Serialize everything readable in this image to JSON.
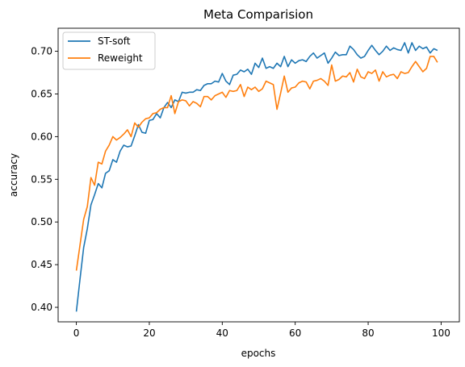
{
  "chart_data": {
    "type": "line",
    "title": "Meta Comparision",
    "xlabel": "epochs",
    "ylabel": "accuracy",
    "xlim": [
      -5,
      105
    ],
    "ylim": [
      0.383,
      0.727
    ],
    "xticks": [
      0,
      20,
      40,
      60,
      80,
      100
    ],
    "xtick_labels": [
      "0",
      "20",
      "40",
      "60",
      "80",
      "100"
    ],
    "yticks": [
      0.4,
      0.45,
      0.5,
      0.55,
      0.6,
      0.65,
      0.7
    ],
    "ytick_labels": [
      "0.40",
      "0.45",
      "0.50",
      "0.55",
      "0.60",
      "0.65",
      "0.70"
    ],
    "grid": false,
    "legend_position": "top-left",
    "series": [
      {
        "name": "ST-soft",
        "color": "#1f77b4",
        "x": [
          0,
          1,
          2,
          3,
          4,
          5,
          6,
          7,
          8,
          9,
          10,
          11,
          12,
          13,
          14,
          15,
          16,
          17,
          18,
          19,
          20,
          21,
          22,
          23,
          24,
          25,
          26,
          27,
          28,
          29,
          30,
          31,
          32,
          33,
          34,
          35,
          36,
          37,
          38,
          39,
          40,
          41,
          42,
          43,
          44,
          45,
          46,
          47,
          48,
          49,
          50,
          51,
          52,
          53,
          54,
          55,
          56,
          57,
          58,
          59,
          60,
          61,
          62,
          63,
          64,
          65,
          66,
          67,
          68,
          69,
          70,
          71,
          72,
          73,
          74,
          75,
          76,
          77,
          78,
          79,
          80,
          81,
          82,
          83,
          84,
          85,
          86,
          87,
          88,
          89,
          90,
          91,
          92,
          93,
          94,
          95,
          96,
          97,
          98,
          99
        ],
        "values": [
          0.395,
          0.433,
          0.47,
          0.492,
          0.52,
          0.532,
          0.545,
          0.54,
          0.557,
          0.56,
          0.573,
          0.57,
          0.583,
          0.59,
          0.588,
          0.589,
          0.601,
          0.614,
          0.605,
          0.604,
          0.619,
          0.62,
          0.627,
          0.622,
          0.634,
          0.64,
          0.634,
          0.643,
          0.641,
          0.652,
          0.651,
          0.652,
          0.652,
          0.655,
          0.654,
          0.66,
          0.662,
          0.662,
          0.665,
          0.664,
          0.674,
          0.665,
          0.661,
          0.672,
          0.673,
          0.678,
          0.676,
          0.679,
          0.673,
          0.686,
          0.681,
          0.692,
          0.68,
          0.682,
          0.68,
          0.686,
          0.682,
          0.694,
          0.682,
          0.69,
          0.686,
          0.689,
          0.69,
          0.688,
          0.694,
          0.698,
          0.692,
          0.695,
          0.698,
          0.686,
          0.692,
          0.699,
          0.695,
          0.696,
          0.696,
          0.706,
          0.702,
          0.696,
          0.692,
          0.694,
          0.701,
          0.707,
          0.701,
          0.696,
          0.7,
          0.706,
          0.701,
          0.704,
          0.702,
          0.701,
          0.71,
          0.698,
          0.71,
          0.701,
          0.706,
          0.703,
          0.705,
          0.698,
          0.703,
          0.701
        ]
      },
      {
        "name": "Reweight",
        "color": "#ff7f0e",
        "x": [
          0,
          1,
          2,
          3,
          4,
          5,
          6,
          7,
          8,
          9,
          10,
          11,
          12,
          13,
          14,
          15,
          16,
          17,
          18,
          19,
          20,
          21,
          22,
          23,
          24,
          25,
          26,
          27,
          28,
          29,
          30,
          31,
          32,
          33,
          34,
          35,
          36,
          37,
          38,
          39,
          40,
          41,
          42,
          43,
          44,
          45,
          46,
          47,
          48,
          49,
          50,
          51,
          52,
          53,
          54,
          55,
          56,
          57,
          58,
          59,
          60,
          61,
          62,
          63,
          64,
          65,
          66,
          67,
          68,
          69,
          70,
          71,
          72,
          73,
          74,
          75,
          76,
          77,
          78,
          79,
          80,
          81,
          82,
          83,
          84,
          85,
          86,
          87,
          88,
          89,
          90,
          91,
          92,
          93,
          94,
          95,
          96,
          97,
          98,
          99
        ],
        "values": [
          0.443,
          0.473,
          0.503,
          0.518,
          0.552,
          0.543,
          0.57,
          0.568,
          0.583,
          0.59,
          0.6,
          0.596,
          0.599,
          0.603,
          0.608,
          0.6,
          0.616,
          0.611,
          0.617,
          0.621,
          0.622,
          0.627,
          0.628,
          0.632,
          0.634,
          0.634,
          0.648,
          0.627,
          0.641,
          0.643,
          0.642,
          0.636,
          0.641,
          0.639,
          0.635,
          0.647,
          0.647,
          0.643,
          0.648,
          0.65,
          0.652,
          0.646,
          0.654,
          0.653,
          0.654,
          0.661,
          0.647,
          0.658,
          0.655,
          0.658,
          0.653,
          0.656,
          0.665,
          0.663,
          0.661,
          0.632,
          0.651,
          0.671,
          0.652,
          0.657,
          0.658,
          0.663,
          0.665,
          0.664,
          0.656,
          0.665,
          0.666,
          0.668,
          0.665,
          0.66,
          0.684,
          0.665,
          0.667,
          0.671,
          0.67,
          0.675,
          0.664,
          0.679,
          0.67,
          0.668,
          0.676,
          0.674,
          0.678,
          0.665,
          0.676,
          0.67,
          0.672,
          0.673,
          0.668,
          0.676,
          0.674,
          0.675,
          0.682,
          0.688,
          0.682,
          0.676,
          0.68,
          0.694,
          0.694,
          0.687
        ]
      }
    ]
  }
}
